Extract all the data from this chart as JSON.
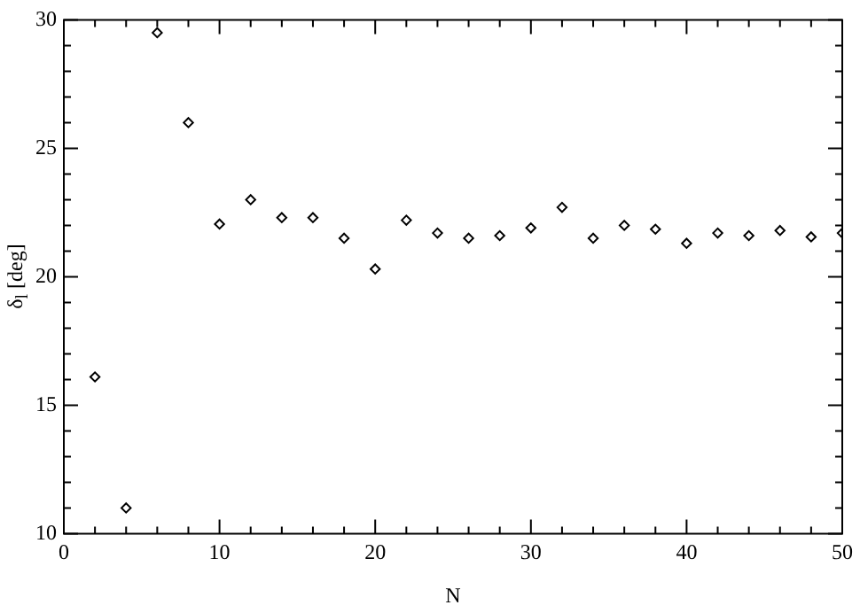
{
  "chart_data": {
    "type": "scatter",
    "xlabel": "N",
    "ylabel": "δ$_{l}$ [deg]",
    "x": [
      2,
      4,
      6,
      8,
      10,
      12,
      14,
      16,
      18,
      20,
      22,
      24,
      26,
      28,
      30,
      32,
      34,
      36,
      38,
      40,
      42,
      44,
      46,
      48,
      50
    ],
    "values": [
      16.1,
      11.0,
      29.5,
      26.0,
      22.05,
      23.0,
      22.3,
      22.3,
      21.5,
      20.3,
      22.2,
      21.7,
      21.5,
      21.6,
      21.9,
      22.7,
      21.5,
      22.0,
      21.85,
      21.3,
      21.7,
      21.6,
      21.8,
      21.55,
      21.7
    ],
    "color": "#000000",
    "marker": "diamond",
    "grid": false,
    "legend": false,
    "xlim": [
      0,
      50
    ],
    "xticks": [
      0,
      10,
      20,
      30,
      40,
      50
    ],
    "ylim": [
      10,
      30
    ],
    "yticks": [
      10,
      15,
      20,
      25,
      30
    ]
  }
}
